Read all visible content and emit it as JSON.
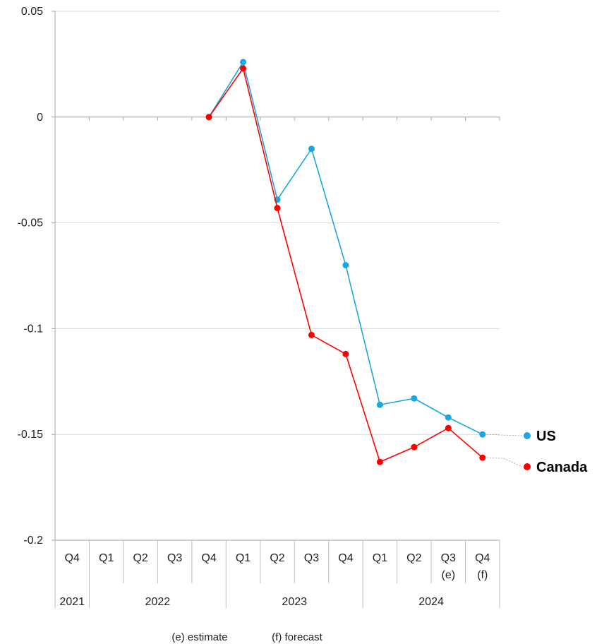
{
  "chart_data": {
    "type": "line",
    "x_categories": [
      {
        "quarter": "Q4",
        "note": ""
      },
      {
        "quarter": "Q1",
        "note": ""
      },
      {
        "quarter": "Q2",
        "note": ""
      },
      {
        "quarter": "Q3",
        "note": ""
      },
      {
        "quarter": "Q4",
        "note": ""
      },
      {
        "quarter": "Q1",
        "note": ""
      },
      {
        "quarter": "Q2",
        "note": ""
      },
      {
        "quarter": "Q3",
        "note": ""
      },
      {
        "quarter": "Q4",
        "note": ""
      },
      {
        "quarter": "Q1",
        "note": ""
      },
      {
        "quarter": "Q2",
        "note": ""
      },
      {
        "quarter": "Q3",
        "note": "(e)"
      },
      {
        "quarter": "Q4",
        "note": "(f)"
      }
    ],
    "years": [
      {
        "label": "2021",
        "start": 0,
        "count": 1
      },
      {
        "label": "2022",
        "start": 1,
        "count": 4
      },
      {
        "label": "2023",
        "start": 5,
        "count": 4
      },
      {
        "label": "2024",
        "start": 9,
        "count": 4
      }
    ],
    "ylim": [
      -0.2,
      0.05
    ],
    "yticks": [
      0.05,
      0,
      -0.05,
      -0.1,
      -0.15,
      -0.2
    ],
    "ytick_labels": [
      "0.05",
      "0",
      "-0.05",
      "-0.1",
      "-0.15",
      "-0.2"
    ],
    "grid": true,
    "series": [
      {
        "name": "US",
        "color": "#1aa7e1",
        "values": [
          null,
          null,
          null,
          null,
          0.0,
          0.026,
          -0.039,
          -0.015,
          -0.07,
          -0.136,
          -0.133,
          -0.142,
          -0.15
        ]
      },
      {
        "name": "Canada",
        "color": "#ff0000",
        "values": [
          null,
          null,
          null,
          null,
          0.0,
          0.023,
          -0.043,
          -0.103,
          -0.112,
          -0.163,
          -0.156,
          -0.147,
          -0.161
        ]
      }
    ],
    "legend_placement": "right",
    "footnotes": [
      "(e) estimate",
      "(f) forecast"
    ]
  }
}
